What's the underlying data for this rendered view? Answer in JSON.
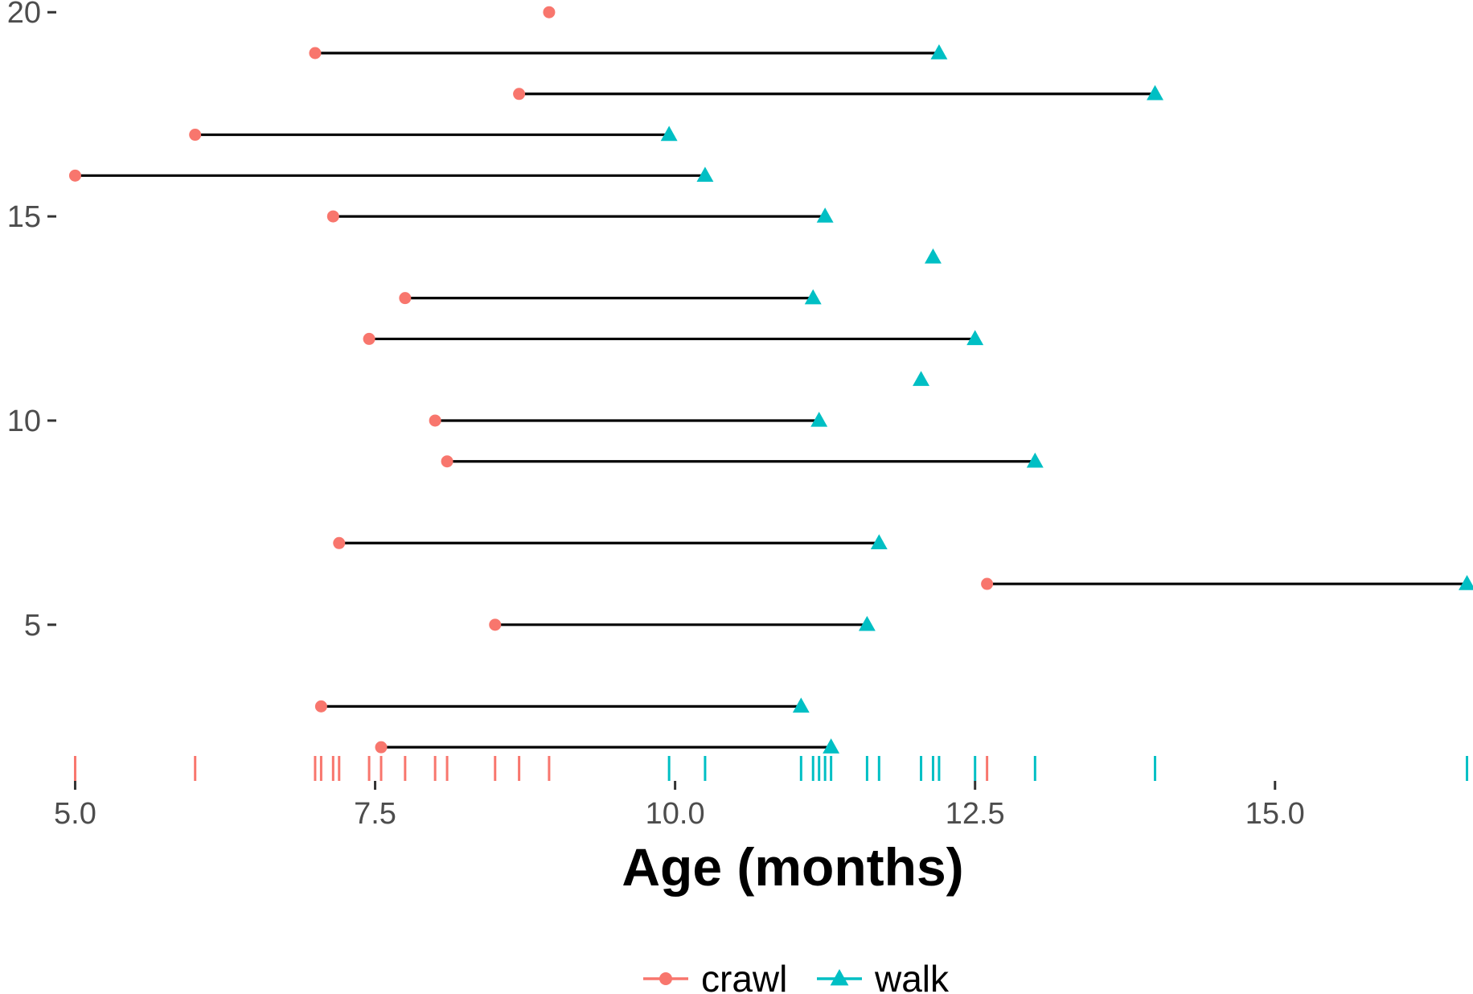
{
  "chart_data": {
    "type": "dumbbell",
    "xlabel": "Age (months)",
    "xlim": [
      4.95,
      16.65
    ],
    "ylim": [
      1.55,
      20.3
    ],
    "x_ticks": [
      5.0,
      7.5,
      10.0,
      12.5,
      15.0
    ],
    "x_tick_labels": [
      "5.0",
      "7.5",
      "10.0",
      "12.5",
      "15.0"
    ],
    "y_ticks": [
      5,
      10,
      15,
      20
    ],
    "y_tick_labels": [
      "5",
      "10",
      "15",
      "20"
    ],
    "grid": false,
    "legend_position": "bottom",
    "series": [
      {
        "name": "crawl",
        "key": "crawl",
        "marker": "circle",
        "color": "#F8766D"
      },
      {
        "name": "walk",
        "key": "walk",
        "marker": "triangle",
        "color": "#00BFC4"
      }
    ],
    "segment_color": "#000000",
    "rug": true,
    "points": [
      {
        "y": 2,
        "crawl": 7.55,
        "walk": 11.3
      },
      {
        "y": 3,
        "crawl": 7.05,
        "walk": 11.05
      },
      {
        "y": 5,
        "crawl": 8.5,
        "walk": 11.6
      },
      {
        "y": 6,
        "crawl": 12.6,
        "walk": 16.6
      },
      {
        "y": 7,
        "crawl": 7.2,
        "walk": 11.7
      },
      {
        "y": 9,
        "crawl": 8.1,
        "walk": 13.0
      },
      {
        "y": 10,
        "crawl": 8.0,
        "walk": 11.2
      },
      {
        "y": 11,
        "crawl": null,
        "walk": 12.05
      },
      {
        "y": 12,
        "crawl": 7.45,
        "walk": 12.5
      },
      {
        "y": 13,
        "crawl": 7.75,
        "walk": 11.15
      },
      {
        "y": 14,
        "crawl": null,
        "walk": 12.15
      },
      {
        "y": 15,
        "crawl": 7.15,
        "walk": 11.25
      },
      {
        "y": 16,
        "crawl": 5.0,
        "walk": 10.25
      },
      {
        "y": 17,
        "crawl": 6.0,
        "walk": 9.95
      },
      {
        "y": 18,
        "crawl": 8.7,
        "walk": 14.0
      },
      {
        "y": 19,
        "crawl": 7.0,
        "walk": 12.2
      },
      {
        "y": 20,
        "crawl": 8.95,
        "walk": null
      }
    ]
  }
}
